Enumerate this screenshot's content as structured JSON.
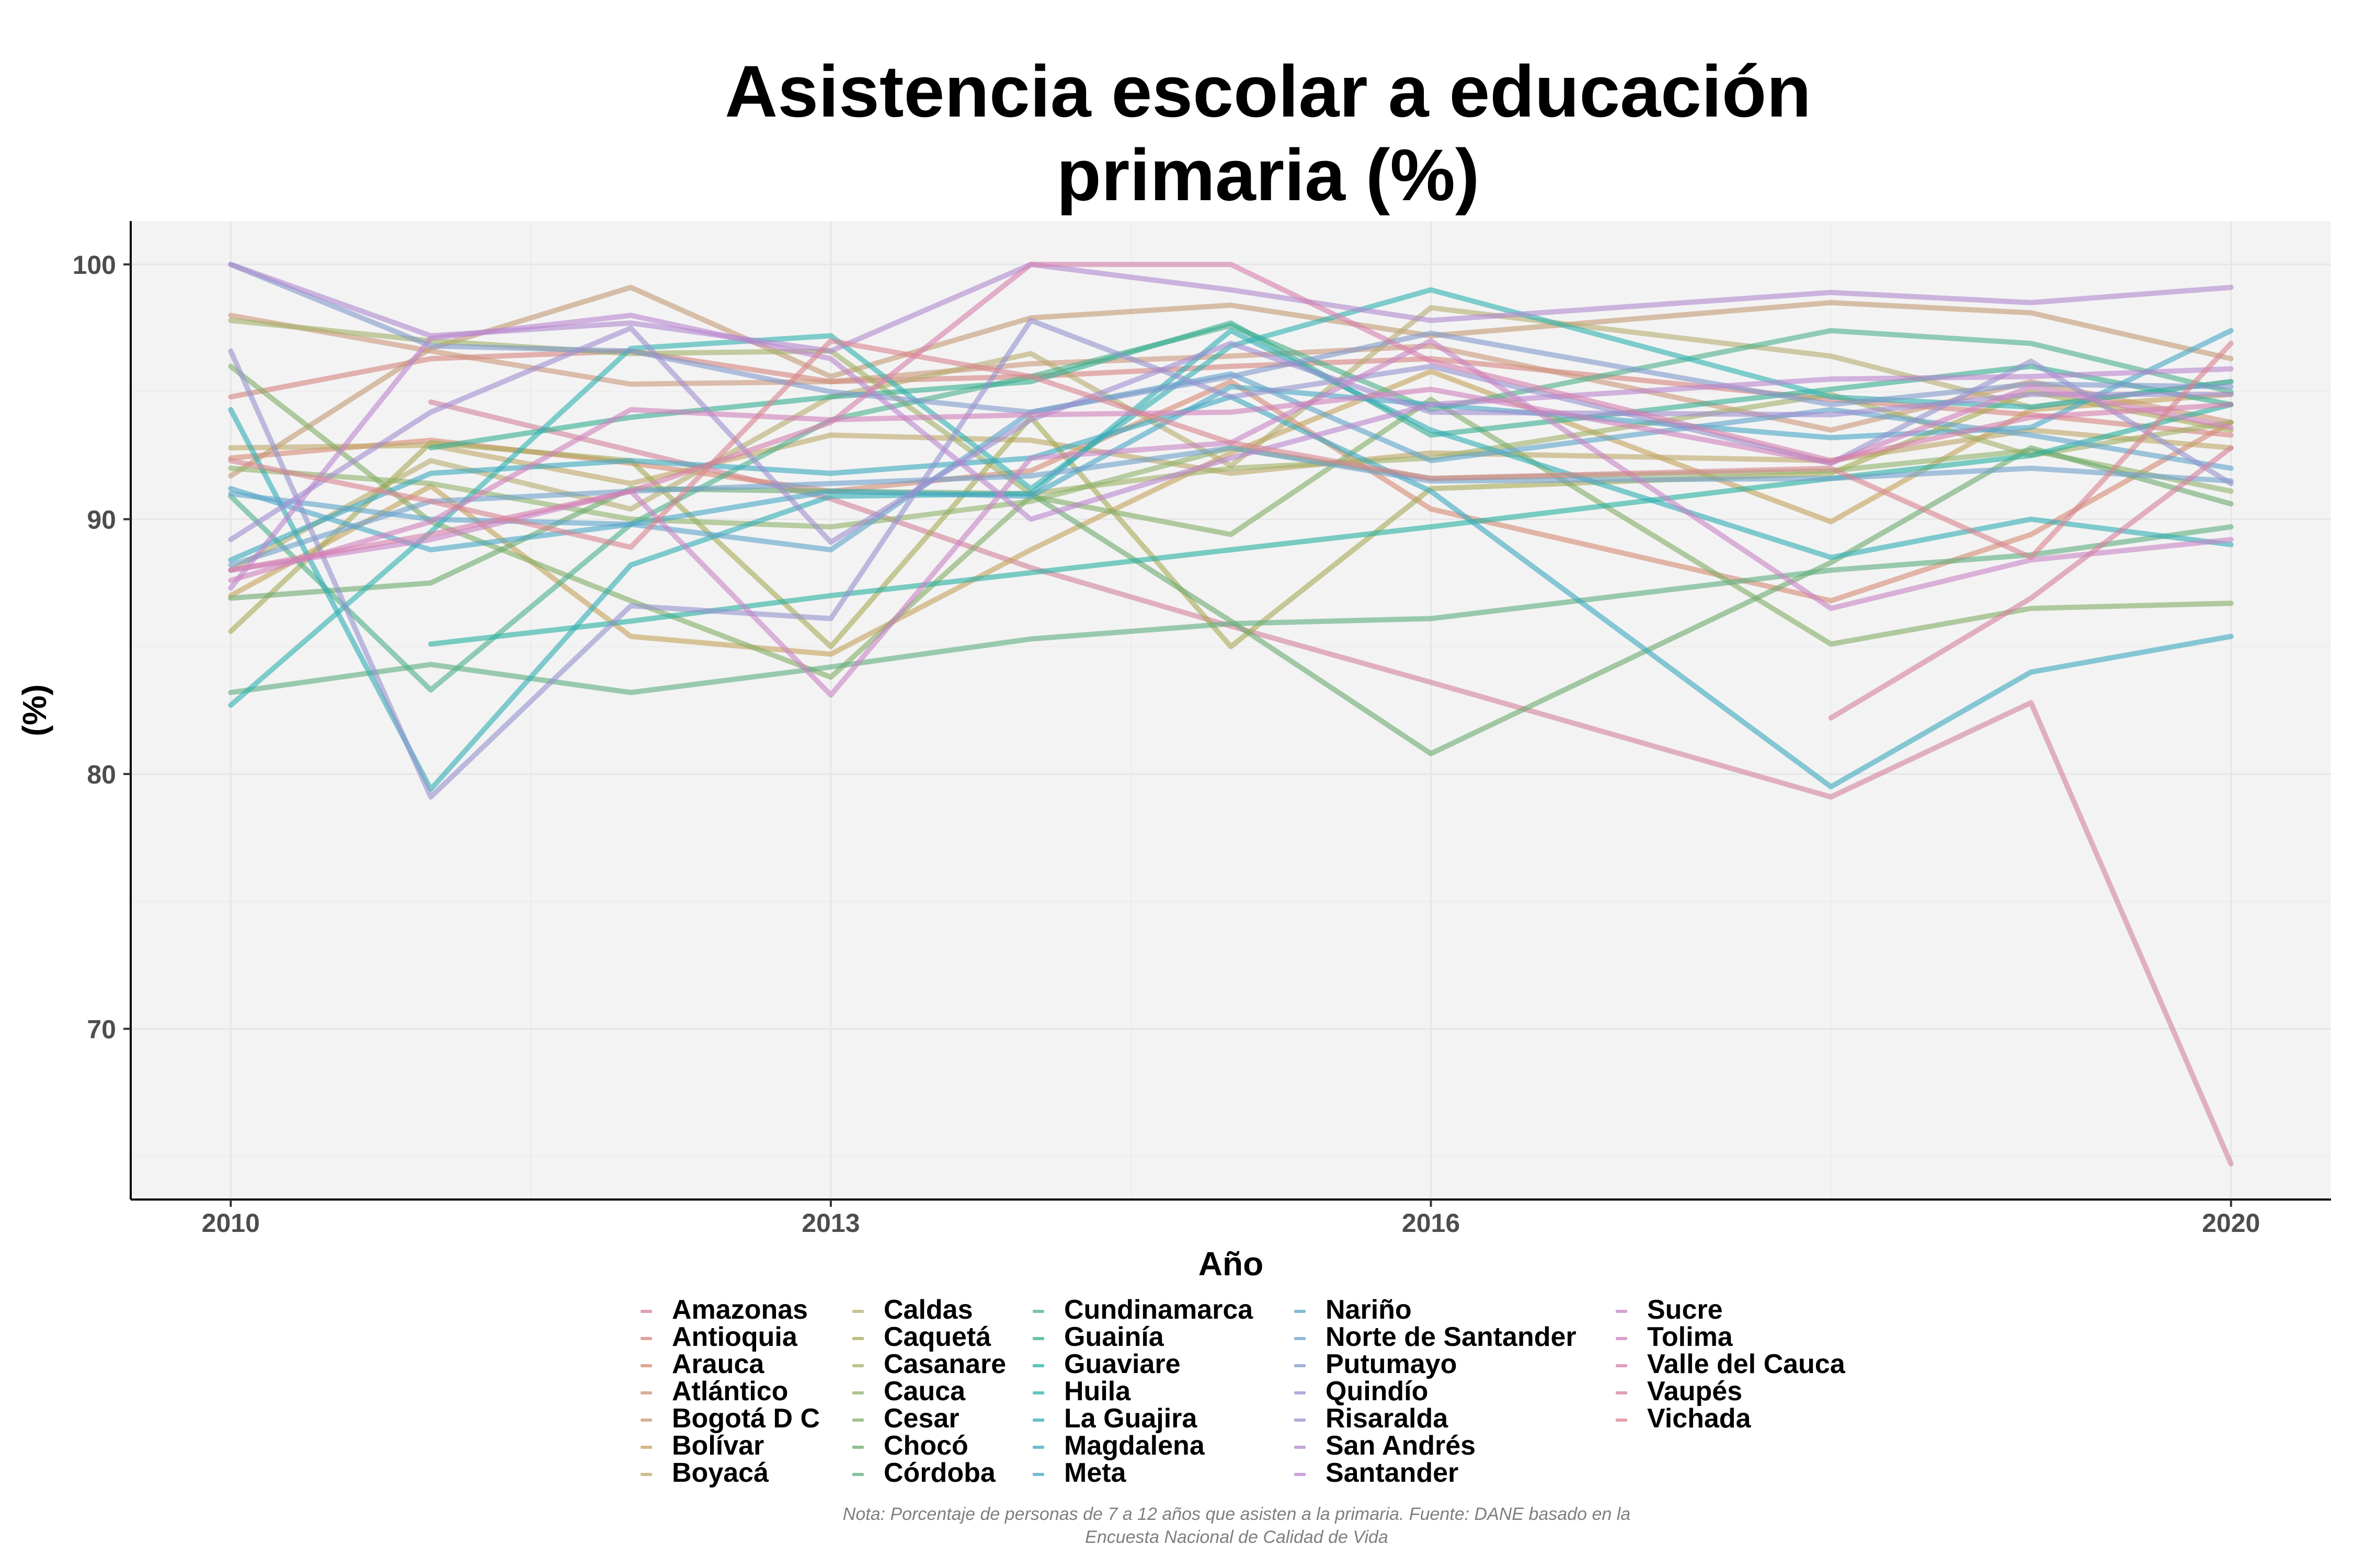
{
  "chart_data": {
    "type": "line",
    "title_lines": [
      "Asistencia escolar a educación",
      "primaria (%)"
    ],
    "xlabel": "Año",
    "ylabel": "(%)",
    "x_ticks": [
      2010,
      2013,
      2016,
      2020
    ],
    "y_ticks": [
      70,
      80,
      90,
      100
    ],
    "xlim": [
      2009.5,
      2020.5
    ],
    "ylim": [
      63.3,
      101.7
    ],
    "grid": true,
    "legend_position": "bottom",
    "note_lines": [
      "Nota: Porcentaje de personas de 7 a 12 años que asisten a la primaria. Fuente: DANE basado en la",
      "Encuesta Nacional de Calidad de Vida"
    ],
    "series": [
      {
        "name": "Amazonas",
        "color": "#D3829B",
        "x": [
          2011,
          2012,
          2013,
          2014,
          2015,
          2016,
          2018,
          2019,
          2020
        ],
        "values": [
          94.6,
          92.7,
          90.8,
          88.1,
          85.8,
          83.6,
          79.1,
          82.8,
          64.7
        ]
      },
      {
        "name": "Antioquia",
        "color": "#D6837F",
        "x": [
          2010,
          2011,
          2012,
          2013,
          2014,
          2015,
          2016,
          2018,
          2019,
          2020
        ],
        "values": [
          94.8,
          96.3,
          96.6,
          95.4,
          95.6,
          96.0,
          96.3,
          94.7,
          94.1,
          93.3
        ]
      },
      {
        "name": "Arauca",
        "color": "#D58A73",
        "x": [
          2010,
          2011,
          2012,
          2013,
          2014,
          2015,
          2016,
          2018,
          2019,
          2020
        ],
        "values": [
          92.4,
          93.1,
          92.2,
          91.1,
          91.9,
          95.4,
          90.4,
          86.8,
          89.4,
          93.8
        ]
      },
      {
        "name": "Atlántico",
        "color": "#CB967A",
        "x": [
          2010,
          2011,
          2012,
          2013,
          2014,
          2015,
          2016,
          2018,
          2019,
          2020
        ],
        "values": [
          98.0,
          96.6,
          95.3,
          95.4,
          96.1,
          96.4,
          96.8,
          93.5,
          95.4,
          93.8
        ]
      },
      {
        "name": "Bogotá D C",
        "color": "#C39A73",
        "x": [
          2010,
          2011,
          2012,
          2013,
          2014,
          2015,
          2016,
          2018,
          2019,
          2020
        ],
        "values": [
          91.7,
          96.7,
          99.1,
          95.6,
          97.9,
          98.4,
          97.2,
          98.5,
          98.1,
          96.3
        ]
      },
      {
        "name": "Bolívar",
        "color": "#C5A25C",
        "x": [
          2010,
          2011,
          2012,
          2013,
          2014,
          2015,
          2016,
          2018,
          2019,
          2020
        ],
        "values": [
          87.0,
          91.3,
          85.4,
          84.7,
          88.8,
          92.6,
          95.8,
          89.9,
          94.3,
          94.9
        ]
      },
      {
        "name": "Boyacá",
        "color": "#BEA767",
        "x": [
          2010,
          2011,
          2012,
          2013,
          2014,
          2015,
          2016,
          2018,
          2019,
          2020
        ],
        "values": [
          92.8,
          92.9,
          91.4,
          93.3,
          93.1,
          91.8,
          92.6,
          92.3,
          93.5,
          92.8
        ]
      },
      {
        "name": "Caldas",
        "color": "#B6AC70",
        "x": [
          2010,
          2011,
          2012,
          2013,
          2014,
          2015,
          2016,
          2018,
          2019,
          2020
        ],
        "values": [
          88.0,
          92.3,
          90.4,
          94.8,
          96.5,
          92.1,
          98.3,
          96.4,
          94.4,
          95.4
        ]
      },
      {
        "name": "Caquetá",
        "color": "#A6AA55",
        "x": [
          2010,
          2011,
          2012,
          2013,
          2014,
          2015,
          2016,
          2018,
          2019,
          2020
        ],
        "values": [
          85.6,
          93.0,
          92.3,
          85.0,
          94.0,
          85.0,
          91.2,
          91.8,
          95.0,
          93.5
        ]
      },
      {
        "name": "Casanare",
        "color": "#A0B168",
        "x": [
          2010,
          2011,
          2012,
          2013,
          2014,
          2015,
          2016,
          2018,
          2019,
          2020
        ],
        "values": [
          97.8,
          97.0,
          96.5,
          96.6,
          91.0,
          92.0,
          92.4,
          94.9,
          92.5,
          93.8
        ]
      },
      {
        "name": "Cauca",
        "color": "#8FB36A",
        "x": [
          2010,
          2011,
          2012,
          2013,
          2014,
          2015,
          2016,
          2018,
          2019,
          2020
        ],
        "values": [
          92.0,
          91.4,
          90.0,
          89.7,
          90.7,
          92.8,
          91.6,
          91.9,
          92.7,
          91.1
        ]
      },
      {
        "name": "Cesar",
        "color": "#82AD66",
        "x": [
          2010,
          2011,
          2012,
          2013,
          2014,
          2015,
          2016,
          2018,
          2019,
          2020
        ],
        "values": [
          96.0,
          89.9,
          86.8,
          83.8,
          90.9,
          89.4,
          94.7,
          85.1,
          86.5,
          86.7
        ]
      },
      {
        "name": "Chocó",
        "color": "#6AAA6E",
        "x": [
          2010,
          2011,
          2012,
          2013,
          2014,
          2015,
          2016,
          2018,
          2019,
          2020
        ],
        "values": [
          86.9,
          87.5,
          91.2,
          91.1,
          91.0,
          86.0,
          80.8,
          88.3,
          92.8,
          90.6
        ]
      },
      {
        "name": "Córdoba",
        "color": "#5EAE7F",
        "x": [
          2010,
          2011,
          2012,
          2013,
          2014,
          2015,
          2016,
          2018,
          2019,
          2020
        ],
        "values": [
          83.2,
          84.3,
          83.2,
          84.2,
          85.3,
          85.9,
          86.1,
          88.0,
          88.6,
          89.7
        ]
      },
      {
        "name": "Cundinamarca",
        "color": "#4DB08A",
        "x": [
          2010,
          2011,
          2012,
          2013,
          2014,
          2015,
          2016,
          2018,
          2019,
          2020
        ],
        "values": [
          90.9,
          83.3,
          89.8,
          93.9,
          95.6,
          97.6,
          94.3,
          97.4,
          96.9,
          95.0
        ]
      },
      {
        "name": "Guainía",
        "color": "#35AE91",
        "x": [
          2011,
          2012,
          2013,
          2014,
          2015,
          2016,
          2018,
          2019,
          2020
        ],
        "values": [
          92.8,
          94.0,
          94.8,
          95.4,
          97.7,
          93.3,
          95.1,
          96.0,
          94.5
        ]
      },
      {
        "name": "Guaviare",
        "color": "#27B0A0",
        "x": [
          2011,
          2012,
          2013,
          2014,
          2015,
          2016,
          2018,
          2019,
          2020
        ],
        "values": [
          85.1,
          86.0,
          87.0,
          87.9,
          88.8,
          89.7,
          91.6,
          92.5,
          94.5
        ]
      },
      {
        "name": "Huila",
        "color": "#2EB2B0",
        "x": [
          2010,
          2011,
          2012,
          2013,
          2014,
          2015,
          2016,
          2018,
          2019,
          2020
        ],
        "values": [
          82.7,
          89.5,
          96.7,
          97.2,
          91.2,
          96.8,
          99.0,
          94.8,
          94.4,
          95.4
        ]
      },
      {
        "name": "La Guajira",
        "color": "#31AEB4",
        "x": [
          2010,
          2011,
          2012,
          2013,
          2014,
          2015,
          2016,
          2018,
          2019,
          2020
        ],
        "values": [
          94.3,
          79.4,
          88.2,
          90.9,
          91.0,
          97.4,
          93.5,
          88.5,
          90.0,
          89.0
        ]
      },
      {
        "name": "Magdalena",
        "color": "#3AA9BE",
        "x": [
          2010,
          2011,
          2012,
          2013,
          2014,
          2015,
          2016,
          2018,
          2019,
          2020
        ],
        "values": [
          88.4,
          91.8,
          92.3,
          91.8,
          92.4,
          94.8,
          91.1,
          79.5,
          84.0,
          85.4
        ]
      },
      {
        "name": "Meta",
        "color": "#48A7C6",
        "x": [
          2010,
          2011,
          2012,
          2013,
          2014,
          2015,
          2016,
          2018,
          2019,
          2020
        ],
        "values": [
          91.2,
          88.8,
          89.8,
          91.1,
          90.9,
          95.2,
          94.5,
          93.2,
          93.6,
          97.4
        ]
      },
      {
        "name": "Nariño",
        "color": "#5EA3C9",
        "x": [
          2010,
          2011,
          2012,
          2013,
          2014,
          2015,
          2016,
          2018,
          2019,
          2020
        ],
        "values": [
          91.0,
          90.0,
          89.8,
          88.8,
          94.2,
          95.7,
          92.3,
          94.3,
          93.3,
          92.0
        ]
      },
      {
        "name": "Norte de Santander",
        "color": "#6FA0CB",
        "x": [
          2010,
          2011,
          2012,
          2013,
          2014,
          2015,
          2016,
          2018,
          2019,
          2020
        ],
        "values": [
          88.2,
          90.7,
          91.1,
          91.4,
          91.7,
          92.8,
          91.5,
          91.6,
          92.0,
          91.5
        ]
      },
      {
        "name": "Putumayo",
        "color": "#8199CC",
        "x": [
          2010,
          2011,
          2012,
          2013,
          2014,
          2015,
          2016,
          2018,
          2019,
          2020
        ],
        "values": [
          100.0,
          96.8,
          96.6,
          95.0,
          94.2,
          95.6,
          97.3,
          94.5,
          95.3,
          95.2
        ]
      },
      {
        "name": "Quindío",
        "color": "#9493CF",
        "x": [
          2010,
          2011,
          2012,
          2013,
          2014,
          2015,
          2016,
          2018,
          2019,
          2020
        ],
        "values": [
          96.6,
          79.1,
          86.6,
          86.1,
          97.8,
          94.8,
          96.0,
          92.2,
          96.2,
          91.4
        ]
      },
      {
        "name": "Risaralda",
        "color": "#A08ED1",
        "x": [
          2010,
          2011,
          2012,
          2013,
          2014,
          2015,
          2016,
          2018,
          2019,
          2020
        ],
        "values": [
          89.2,
          94.2,
          97.5,
          89.1,
          93.9,
          96.9,
          94.2,
          94.1,
          94.9,
          94.9
        ]
      },
      {
        "name": "San Andrés",
        "color": "#AF88CE",
        "x": [
          2010,
          2011,
          2012,
          2013,
          2014,
          2015,
          2016,
          2018,
          2019,
          2020
        ],
        "values": [
          100.0,
          97.2,
          97.7,
          96.6,
          100.0,
          99.0,
          97.8,
          98.9,
          98.5,
          99.1
        ]
      },
      {
        "name": "Santander",
        "color": "#BB86CF",
        "x": [
          2010,
          2011,
          2012,
          2013,
          2014,
          2015,
          2016,
          2018,
          2019,
          2020
        ],
        "values": [
          87.3,
          97.1,
          98.0,
          96.3,
          90.0,
          92.4,
          94.5,
          95.5,
          95.6,
          95.9
        ]
      },
      {
        "name": "Sucre",
        "color": "#C884C5",
        "x": [
          2010,
          2011,
          2012,
          2013,
          2014,
          2015,
          2016,
          2018,
          2019,
          2020
        ],
        "values": [
          88.0,
          89.2,
          91.1,
          83.1,
          92.4,
          93.0,
          97.0,
          86.5,
          88.4,
          89.2
        ]
      },
      {
        "name": "Tolima",
        "color": "#D080BD",
        "x": [
          2010,
          2011,
          2012,
          2013,
          2014,
          2015,
          2016,
          2018,
          2019,
          2020
        ],
        "values": [
          87.6,
          89.9,
          94.3,
          93.9,
          94.1,
          94.2,
          95.1,
          92.2,
          95.2,
          93.6
        ]
      },
      {
        "name": "Valle del Cauca",
        "color": "#D57FAE",
        "x": [
          2010,
          2011,
          2012,
          2013,
          2014,
          2015,
          2016,
          2018,
          2019,
          2020
        ],
        "values": [
          88.0,
          89.4,
          91.1,
          93.8,
          100.0,
          100.0,
          96.2,
          92.3,
          94.0,
          94.5
        ]
      },
      {
        "name": "Vaupés",
        "color": "#D6819E",
        "x": [
          2018,
          2019,
          2020
        ],
        "values": [
          82.2,
          86.9,
          92.8
        ]
      },
      {
        "name": "Vichada",
        "color": "#D8838F",
        "x": [
          2010,
          2011,
          2012,
          2013,
          2014,
          2015,
          2016,
          2018,
          2019,
          2020
        ],
        "values": [
          92.3,
          90.7,
          88.9,
          97.0,
          95.6,
          93.0,
          91.6,
          92.0,
          88.5,
          96.9
        ]
      }
    ]
  }
}
